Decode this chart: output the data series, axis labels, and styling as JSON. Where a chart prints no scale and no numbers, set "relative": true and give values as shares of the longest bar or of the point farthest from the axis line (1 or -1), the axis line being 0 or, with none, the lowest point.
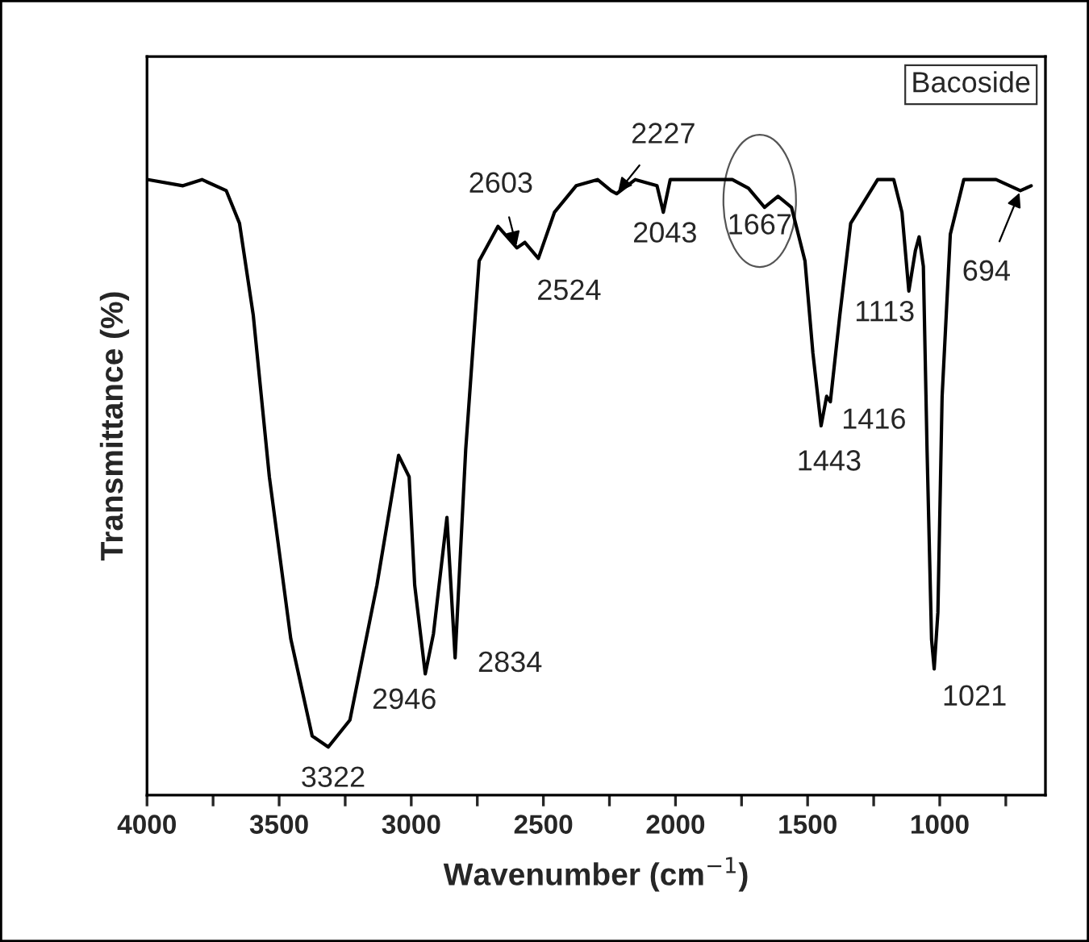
{
  "chart_data": {
    "type": "line",
    "relative": true,
    "xlabel": "Wavenumber (cm$^{−1}$)",
    "ylabel": "Transmittance (%)",
    "xlim": [
      4000,
      600
    ],
    "xticks": [
      4000,
      {
        "value": 3750,
        "label": null
      },
      3500,
      {
        "value": 3250,
        "label": null
      },
      3000,
      {
        "value": 2750,
        "label": null
      },
      2500,
      {
        "value": 2250,
        "label": null
      },
      2000,
      {
        "value": 1750,
        "label": null
      },
      1500,
      {
        "value": 1250,
        "label": null
      },
      1000,
      {
        "value": 750,
        "label": null
      }
    ],
    "tick_labels": "x",
    "grid": false,
    "legend": "top right",
    "marker": "none",
    "line_style": "solid",
    "series": [
      {
        "name": "Bacoside",
        "color": "#000000",
        "x": [
          3996,
          3864,
          3792,
          3700,
          3650,
          3598,
          3537,
          3456,
          3375,
          3314,
          3232,
          3130,
          3048,
          3008,
          2987,
          2947,
          2916,
          2865,
          2834,
          2794,
          2743,
          2672,
          2600,
          2570,
          2519,
          2458,
          2376,
          2295,
          2244,
          2223,
          2152,
          2070,
          2046,
          2020,
          1785,
          1724,
          1663,
          1612,
          1561,
          1510,
          1480,
          1449,
          1428,
          1414,
          1378,
          1337,
          1235,
          1174,
          1143,
          1117,
          1092,
          1078,
          1062,
          1048,
          1031,
          1021,
          1007,
          991,
          960,
          909,
          787,
          695,
          654
        ],
        "values": [
          1.0,
          0.99,
          1.0,
          0.982,
          0.929,
          0.78,
          0.517,
          0.254,
          0.096,
          0.078,
          0.122,
          0.341,
          0.552,
          0.517,
          0.341,
          0.197,
          0.262,
          0.451,
          0.223,
          0.561,
          0.868,
          0.924,
          0.889,
          0.898,
          0.872,
          0.947,
          0.99,
          1.0,
          0.982,
          0.977,
          1.0,
          0.99,
          0.947,
          1.0,
          1.0,
          0.986,
          0.955,
          0.973,
          0.955,
          0.868,
          0.718,
          0.6,
          0.648,
          0.639,
          0.78,
          0.929,
          1.0,
          1.0,
          0.947,
          0.819,
          0.885,
          0.907,
          0.859,
          0.561,
          0.253,
          0.205,
          0.297,
          0.648,
          0.911,
          1.0,
          1.0,
          0.982,
          0.99
        ]
      }
    ],
    "annotations": [
      {
        "text": "3322",
        "x": 3314,
        "y": 0.078
      },
      {
        "text": "2946",
        "x": 2947,
        "y": 0.197
      },
      {
        "text": "2834",
        "x": 2834,
        "y": 0.223
      },
      {
        "text": "2603",
        "x": 2600,
        "y": 0.889
      },
      {
        "text": "2524",
        "x": 2519,
        "y": 0.872
      },
      {
        "text": "2227",
        "x": 2223,
        "y": 0.977
      },
      {
        "text": "2043",
        "x": 2046,
        "y": 0.947
      },
      {
        "text": "1667",
        "x": 1663,
        "y": 0.955
      },
      {
        "text": "1443",
        "x": 1449,
        "y": 0.6
      },
      {
        "text": "1416",
        "x": 1414,
        "y": 0.639
      },
      {
        "text": "1113",
        "x": 1117,
        "y": 0.819
      },
      {
        "text": "1021",
        "x": 1021,
        "y": 0.205
      },
      {
        "text": "694",
        "x": 695,
        "y": 0.982
      }
    ]
  }
}
